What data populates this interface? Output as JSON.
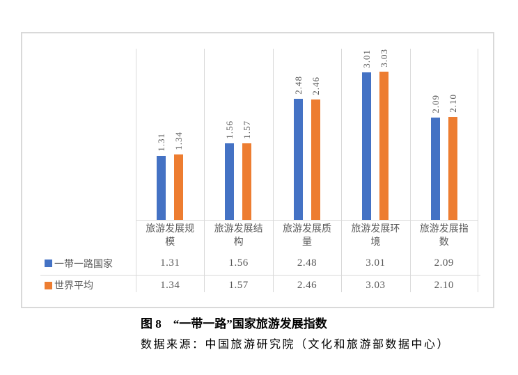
{
  "figure": {
    "caption": "图 8　“一带一路”国家旅游发展指数",
    "source": "数据来源：中国旅游研究院（文化和旅游部数据中心）"
  },
  "chart_data": {
    "type": "bar",
    "categories": [
      "旅游发展规模",
      "旅游发展结构",
      "旅游发展质量",
      "旅游发展环境",
      "旅游发展指数"
    ],
    "series": [
      {
        "name": "一带一路国家",
        "color": "#4472C4",
        "values": [
          1.31,
          1.56,
          2.48,
          3.01,
          2.09
        ]
      },
      {
        "name": "世界平均",
        "color": "#ED7D31",
        "values": [
          1.34,
          1.57,
          2.46,
          3.03,
          2.1
        ]
      }
    ],
    "title": "图 8　“一带一路”国家旅游发展指数",
    "xlabel": "",
    "ylabel": "",
    "ylim": [
      0,
      3.5
    ],
    "grid": "vertical category separators only",
    "legend_position": "data table below chart",
    "data_labels": {
      "rotation_deg": 90,
      "format": "0.00",
      "color": "#595959"
    },
    "style": {
      "frame_border_color": "#d9d9d9",
      "grid_line_color": "#d9d9d9",
      "text_color": "#595959"
    }
  }
}
